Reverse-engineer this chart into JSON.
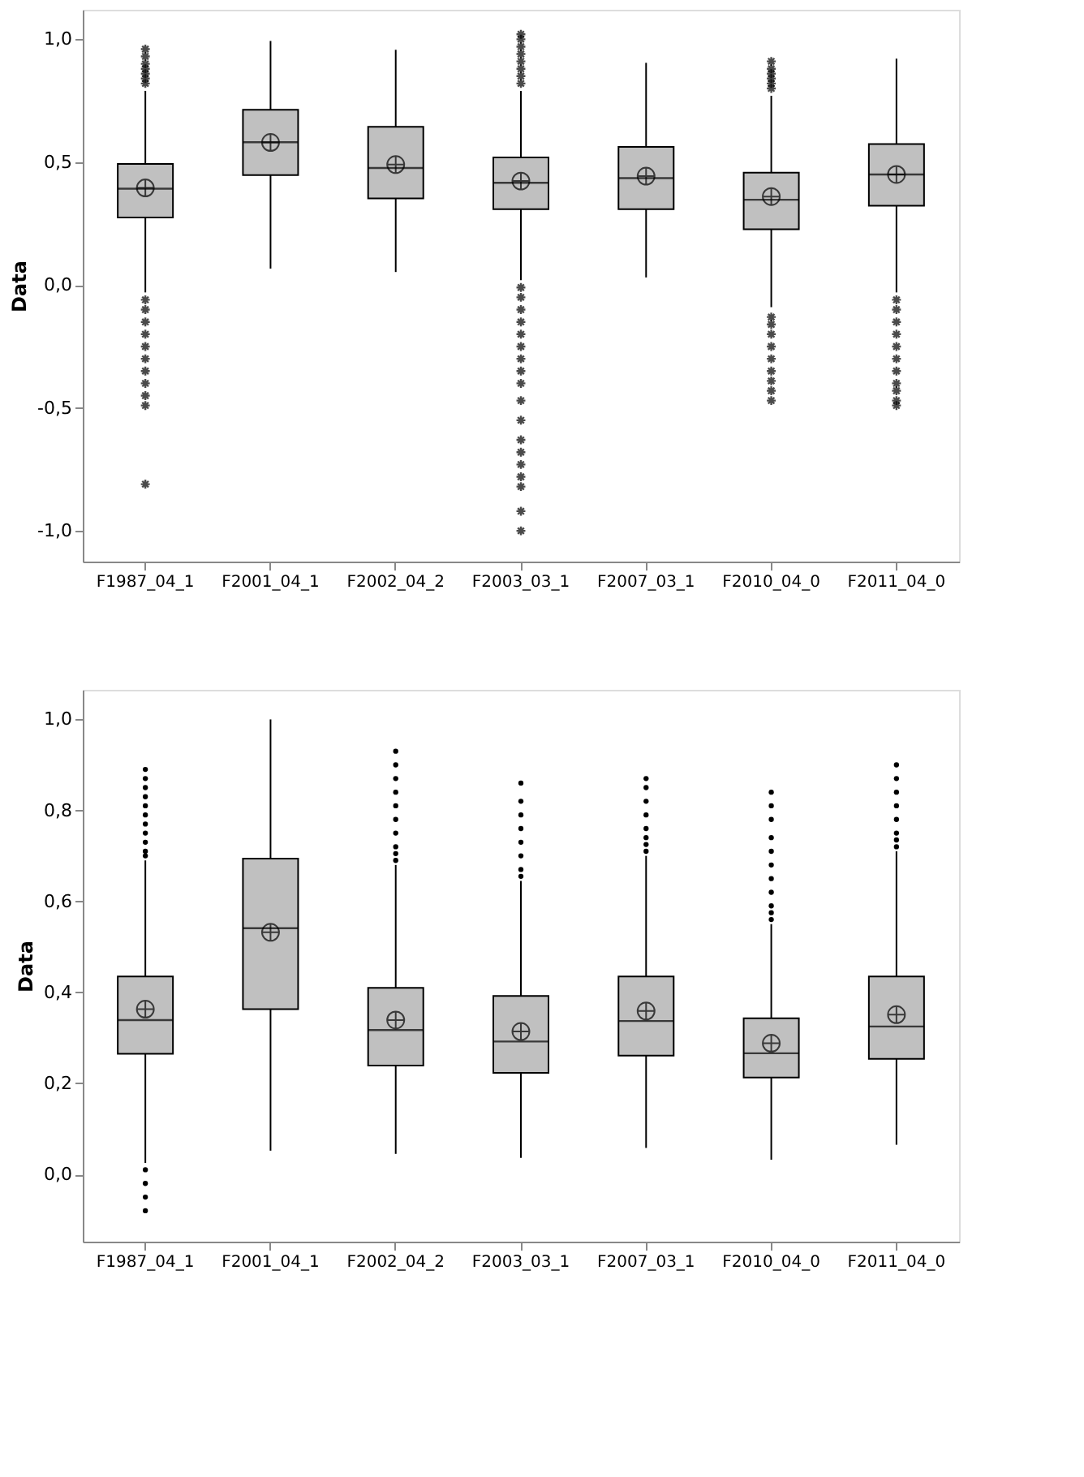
{
  "chart_data": [
    {
      "type": "box",
      "ylabel": "Data",
      "categories": [
        "F1987_04_1",
        "F2001_04_1",
        "F2002_04_2",
        "F2003_03_1",
        "F2007_03_1",
        "F2010_04_0",
        "F2011_04_0"
      ],
      "ylim": [
        -1.125,
        1.12
      ],
      "yticks": [
        {
          "value": -1.0,
          "label": "-1,0"
        },
        {
          "value": -0.5,
          "label": "-0,5"
        },
        {
          "value": 0.0,
          "label": "0,0"
        },
        {
          "value": 0.5,
          "label": "0,5"
        },
        {
          "value": 1.0,
          "label": "1,0"
        }
      ],
      "color": "#c0c0c0",
      "marker": "star",
      "grid": false,
      "legend": false,
      "boxes": [
        {
          "low": -0.03,
          "q1": 0.275,
          "median": 0.392,
          "q3": 0.493,
          "high": 0.79,
          "mean": 0.395,
          "outliers": [
            0.82,
            0.84,
            0.86,
            0.88,
            0.9,
            0.93,
            0.96,
            -0.06,
            -0.1,
            -0.15,
            -0.2,
            -0.25,
            -0.3,
            -0.35,
            -0.4,
            -0.45,
            -0.49,
            -0.81
          ]
        },
        {
          "low": 0.067,
          "q1": 0.447,
          "median": 0.581,
          "q3": 0.713,
          "high": 0.993,
          "mean": 0.58
        },
        {
          "low": 0.053,
          "q1": 0.352,
          "median": 0.476,
          "q3": 0.644,
          "high": 0.957,
          "mean": 0.49
        },
        {
          "low": 0.02,
          "q1": 0.309,
          "median": 0.416,
          "q3": 0.519,
          "high": 0.79,
          "mean": 0.423,
          "outliers": [
            0.82,
            0.85,
            0.88,
            0.91,
            0.94,
            0.97,
            1.0,
            1.02,
            -0.01,
            -0.05,
            -0.1,
            -0.15,
            -0.2,
            -0.25,
            -0.3,
            -0.35,
            -0.4,
            -0.47,
            -0.55,
            -0.63,
            -0.68,
            -0.73,
            -0.78,
            -0.82,
            -0.92,
            -1.0
          ]
        },
        {
          "low": 0.031,
          "q1": 0.309,
          "median": 0.435,
          "q3": 0.562,
          "high": 0.904,
          "mean": 0.443
        },
        {
          "low": -0.09,
          "q1": 0.227,
          "median": 0.347,
          "q3": 0.457,
          "high": 0.77,
          "mean": 0.36,
          "outliers": [
            0.8,
            0.82,
            0.84,
            0.86,
            0.88,
            0.91,
            -0.13,
            -0.16,
            -0.2,
            -0.25,
            -0.3,
            -0.35,
            -0.39,
            -0.43,
            -0.47
          ]
        },
        {
          "low": -0.03,
          "q1": 0.323,
          "median": 0.45,
          "q3": 0.574,
          "high": 0.921,
          "mean": 0.45,
          "outliers": [
            -0.06,
            -0.1,
            -0.15,
            -0.2,
            -0.25,
            -0.3,
            -0.35,
            -0.4,
            -0.43,
            -0.47,
            -0.49
          ]
        }
      ]
    },
    {
      "type": "box",
      "ylabel": "Data",
      "categories": [
        "F1987_04_1",
        "F2001_04_1",
        "F2002_04_2",
        "F2003_03_1",
        "F2007_03_1",
        "F2010_04_0",
        "F2011_04_0"
      ],
      "ylim": [
        -0.148,
        1.065
      ],
      "yticks": [
        {
          "value": 0.0,
          "label": "0,0"
        },
        {
          "value": 0.2,
          "label": "0,2"
        },
        {
          "value": 0.4,
          "label": "0,4"
        },
        {
          "value": 0.6,
          "label": "0,6"
        },
        {
          "value": 0.8,
          "label": "0,8"
        },
        {
          "value": 1.0,
          "label": "1,0"
        }
      ],
      "color": "#c0c0c0",
      "marker": "circle",
      "grid": false,
      "legend": false,
      "boxes": [
        {
          "low": 0.025,
          "q1": 0.265,
          "median": 0.339,
          "q3": 0.435,
          "high": 0.69,
          "mean": 0.363,
          "outliers": [
            0.7,
            0.71,
            0.73,
            0.75,
            0.77,
            0.79,
            0.81,
            0.83,
            0.85,
            0.87,
            0.89,
            0.01,
            -0.02,
            -0.05,
            -0.08
          ]
        },
        {
          "low": 0.052,
          "q1": 0.363,
          "median": 0.541,
          "q3": 0.694,
          "high": 1.0,
          "mean": 0.532
        },
        {
          "low": 0.045,
          "q1": 0.239,
          "median": 0.317,
          "q3": 0.41,
          "high": 0.68,
          "mean": 0.339,
          "outliers": [
            0.69,
            0.705,
            0.72,
            0.75,
            0.78,
            0.81,
            0.84,
            0.87,
            0.9,
            0.93
          ]
        },
        {
          "low": 0.036,
          "q1": 0.223,
          "median": 0.292,
          "q3": 0.392,
          "high": 0.645,
          "mean": 0.314,
          "outliers": [
            0.655,
            0.67,
            0.7,
            0.73,
            0.76,
            0.79,
            0.82,
            0.86
          ]
        },
        {
          "low": 0.058,
          "q1": 0.261,
          "median": 0.337,
          "q3": 0.435,
          "high": 0.7,
          "mean": 0.359,
          "outliers": [
            0.71,
            0.725,
            0.74,
            0.76,
            0.79,
            0.82,
            0.85,
            0.87
          ]
        },
        {
          "low": 0.032,
          "q1": 0.213,
          "median": 0.266,
          "q3": 0.343,
          "high": 0.55,
          "mean": 0.288,
          "outliers": [
            0.56,
            0.575,
            0.59,
            0.62,
            0.65,
            0.68,
            0.71,
            0.74,
            0.78,
            0.81,
            0.84
          ]
        },
        {
          "low": 0.065,
          "q1": 0.254,
          "median": 0.325,
          "q3": 0.435,
          "high": 0.71,
          "mean": 0.351,
          "outliers": [
            0.72,
            0.735,
            0.75,
            0.78,
            0.81,
            0.84,
            0.87,
            0.9
          ]
        }
      ]
    }
  ]
}
